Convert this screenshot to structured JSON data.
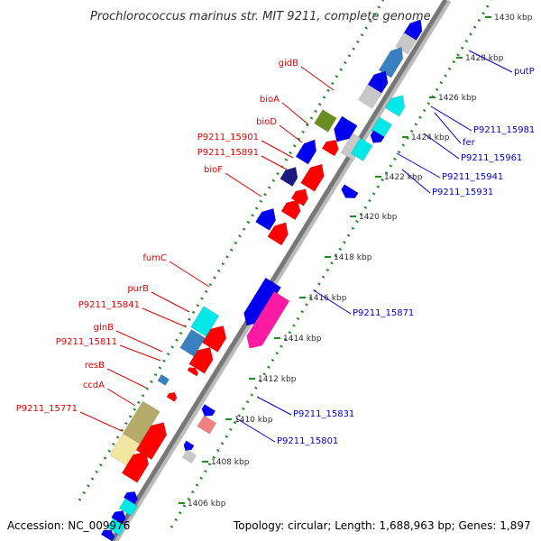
{
  "title": "Prochlorococcus marinus str. MIT 9211, complete genome",
  "footer": {
    "accession": "Accession: NC_009976",
    "summary": "Topology: circular; Length: 1,688,963 bp; Genes: 1,897"
  },
  "colors": {
    "red": "#ff0000",
    "blue": "#0000ee",
    "cyan": "#00e8e8",
    "steelblue": "#3a7fc0",
    "olive": "#6b8e23",
    "khaki": "#b5aa6a",
    "paleyellow": "#f2e6a0",
    "pink": "#ff1aa3",
    "salmon": "#f08080",
    "lightgray": "#c8c8c8",
    "navy": "#1a1a80",
    "dotted_ring": "#228b22",
    "backbone": "#888888",
    "label_red": "#e00000",
    "label_blue": "#0000cc"
  },
  "scale_ticks": [
    "1430 kbp",
    "1428 kbp",
    "1426 kbp",
    "1424 kbp",
    "1422 kbp",
    "1420 kbp",
    "1418 kbp",
    "1416 kbp",
    "1414 kbp",
    "1412 kbp",
    "1410 kbp",
    "1408 kbp",
    "1406 kbp"
  ],
  "left_labels": [
    "gidB",
    "bioA",
    "bioD",
    "P9211_15901",
    "P9211_15891",
    "bioF",
    "fumC",
    "purB",
    "P9211_15841",
    "glnB",
    "P9211_15811",
    "resB",
    "ccdA",
    "P9211_15771"
  ],
  "right_labels": [
    "putP",
    "P9211_15981",
    "fer",
    "P9211_15961",
    "P9211_15941",
    "P9211_15931",
    "P9211_15871",
    "P9211_15831",
    "P9211_15801"
  ]
}
